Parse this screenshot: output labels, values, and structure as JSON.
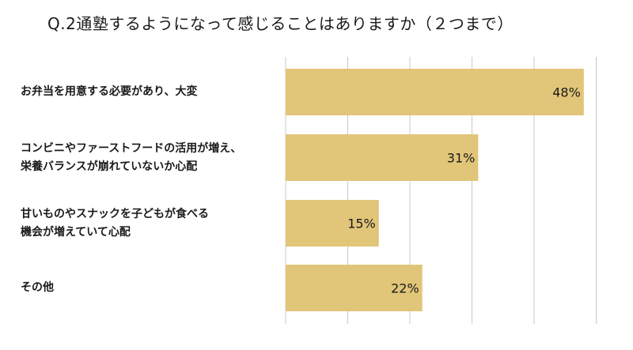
{
  "chart_data": {
    "type": "bar",
    "orientation": "horizontal",
    "title": "Q.2通塾するようになって感じることはありますか（２つまで）",
    "categories": [
      [
        "お弁当を用意する必要があり、大変"
      ],
      [
        "コンビニやファーストフードの活用が増え、",
        "栄養バランスが崩れていないか心配"
      ],
      [
        "甘いものやスナックを子どもが食べる",
        "機会が増えていて心配"
      ],
      [
        "その他"
      ]
    ],
    "values": [
      48,
      31,
      15,
      22
    ],
    "value_labels": [
      "48%",
      "31%",
      "15%",
      "22%"
    ],
    "unit": "%",
    "xlim": [
      0,
      50
    ],
    "grid_step": 10,
    "grid": true,
    "legend": "none",
    "bar_color": "#e1c578",
    "grid_color": "#c8c8c8"
  }
}
